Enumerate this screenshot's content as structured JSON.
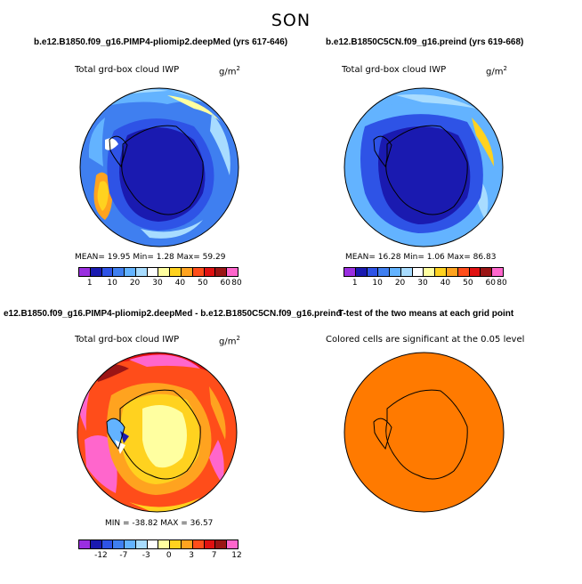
{
  "figure": {
    "season": "SON"
  },
  "panels": {
    "p1": {
      "title": "b.e12.B1850.f09_g16.PIMP4-pliomip2.deepMed (yrs 617-646)",
      "subtitle": "Total grd-box cloud IWP",
      "units": "g/m",
      "units_sup": "2",
      "stats": "MEAN=  19.95   Min=   1.28   Max=  59.29",
      "colorbar": {
        "colors": [
          "#9a2fe0",
          "#1a1ab0",
          "#2e53e6",
          "#3f7ff0",
          "#63b3ff",
          "#a8dcff",
          "#ffffff",
          "#ffffa0",
          "#ffd21f",
          "#ffa31f",
          "#ff4d1a",
          "#e01111",
          "#9b1515",
          "#ff66cc"
        ],
        "tick_labels": [
          "1",
          "10",
          "20",
          "30",
          "40",
          "50",
          "60",
          "80"
        ]
      }
    },
    "p2": {
      "title": "b.e12.B1850C5CN.f09_g16.preind (yrs 619-668)",
      "subtitle": "Total grd-box cloud IWP",
      "units": "g/m",
      "units_sup": "2",
      "stats": "MEAN=  16.28   Min=   1.06   Max=  86.83",
      "colorbar": {
        "colors": [
          "#9a2fe0",
          "#1a1ab0",
          "#2e53e6",
          "#3f7ff0",
          "#63b3ff",
          "#a8dcff",
          "#ffffff",
          "#ffffa0",
          "#ffd21f",
          "#ffa31f",
          "#ff4d1a",
          "#e01111",
          "#9b1515",
          "#ff66cc"
        ],
        "tick_labels": [
          "1",
          "10",
          "20",
          "30",
          "40",
          "50",
          "60",
          "80"
        ]
      }
    },
    "p3": {
      "title": "e12.B1850.f09_g16.PIMP4-pliomip2.deepMed - b.e12.B1850C5CN.f09_g16.preind",
      "subtitle": "Total grd-box cloud IWP",
      "units": "g/m",
      "units_sup": "2",
      "stats": "MIN = -38.82  MAX =  36.57",
      "colorbar": {
        "colors": [
          "#9a2fe0",
          "#1a1ab0",
          "#2e53e6",
          "#3f7ff0",
          "#63b3ff",
          "#a8dcff",
          "#ffffff",
          "#ffffa0",
          "#ffd21f",
          "#ffa31f",
          "#ff4d1a",
          "#e01111",
          "#9b1515",
          "#ff66cc"
        ],
        "tick_labels": [
          "-12",
          "-7",
          "-3",
          "0",
          "3",
          "7",
          "12"
        ]
      }
    },
    "p4": {
      "title": "T-test of the two means at each grid point",
      "subtitle": "Colored cells are significant at the 0.05 level",
      "fill_color": "#ff7a00"
    }
  },
  "chart_data": [
    {
      "type": "heatmap",
      "projection": "south-polar stereographic",
      "title": "b.e12.B1850.f09_g16.PIMP4-pliomip2.deepMed (yrs 617-646)",
      "variable": "Total grd-box cloud IWP",
      "units": "g/m2",
      "mean": 19.95,
      "min": 1.28,
      "max": 59.29,
      "colorbar_levels": [
        1,
        5,
        10,
        15,
        20,
        25,
        30,
        35,
        40,
        45,
        50,
        60,
        70,
        80
      ]
    },
    {
      "type": "heatmap",
      "projection": "south-polar stereographic",
      "title": "b.e12.B1850C5CN.f09_g16.preind (yrs 619-668)",
      "variable": "Total grd-box cloud IWP",
      "units": "g/m2",
      "mean": 16.28,
      "min": 1.06,
      "max": 86.83,
      "colorbar_levels": [
        1,
        5,
        10,
        15,
        20,
        25,
        30,
        35,
        40,
        45,
        50,
        60,
        70,
        80
      ]
    },
    {
      "type": "heatmap",
      "projection": "south-polar stereographic",
      "title": "difference: deepMed - preind",
      "variable": "Total grd-box cloud IWP",
      "units": "g/m2",
      "min": -38.82,
      "max": 36.57,
      "colorbar_levels": [
        -15,
        -12,
        -9,
        -7,
        -5,
        -3,
        -1,
        0,
        1,
        3,
        5,
        7,
        9,
        12,
        15
      ]
    },
    {
      "type": "heatmap",
      "projection": "south-polar stereographic",
      "title": "T-test of the two means at each grid point",
      "note": "Colored cells are significant at the 0.05 level",
      "significant": "nearly all cells"
    }
  ]
}
